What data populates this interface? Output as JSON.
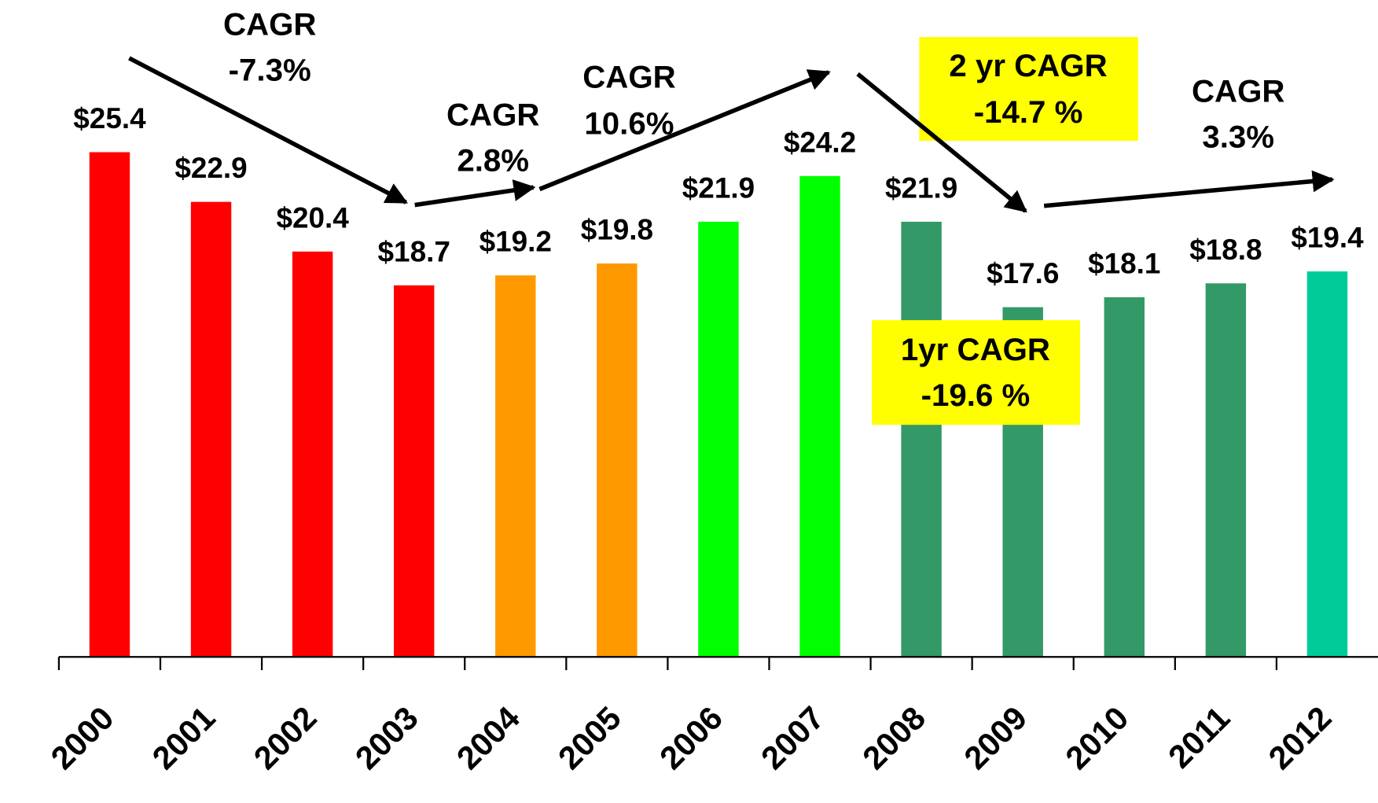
{
  "chart_data": {
    "type": "bar",
    "categories": [
      "2000",
      "2001",
      "2002",
      "2003",
      "2004",
      "2005",
      "2006",
      "2007",
      "2008",
      "2009",
      "2010",
      "2011",
      "2012"
    ],
    "values": [
      25.4,
      22.9,
      20.4,
      18.7,
      19.2,
      19.8,
      21.9,
      24.2,
      21.9,
      17.6,
      18.1,
      18.8,
      19.4
    ],
    "value_labels": [
      "$25.4",
      "$22.9",
      "$20.4",
      "$18.7",
      "$19.2",
      "$19.8",
      "$21.9",
      "$24.2",
      "$21.9",
      "$17.6",
      "$18.1",
      "$18.8",
      "$19.4"
    ],
    "colors": [
      "#ff0000",
      "#ff0000",
      "#ff0000",
      "#ff0000",
      "#ff9900",
      "#ff9900",
      "#00ff00",
      "#00ff00",
      "#339966",
      "#339966",
      "#339966",
      "#339966",
      "#00cc99"
    ],
    "annotations": [
      [
        "CAGR",
        "-7.3%"
      ],
      [
        "CAGR",
        "2.8%"
      ],
      [
        "CAGR",
        "10.6%"
      ],
      [
        "2 yr CAGR",
        "-14.7 %"
      ],
      [
        "1yr CAGR",
        "-19.6 %"
      ],
      [
        "CAGR",
        "3.3%"
      ]
    ]
  }
}
